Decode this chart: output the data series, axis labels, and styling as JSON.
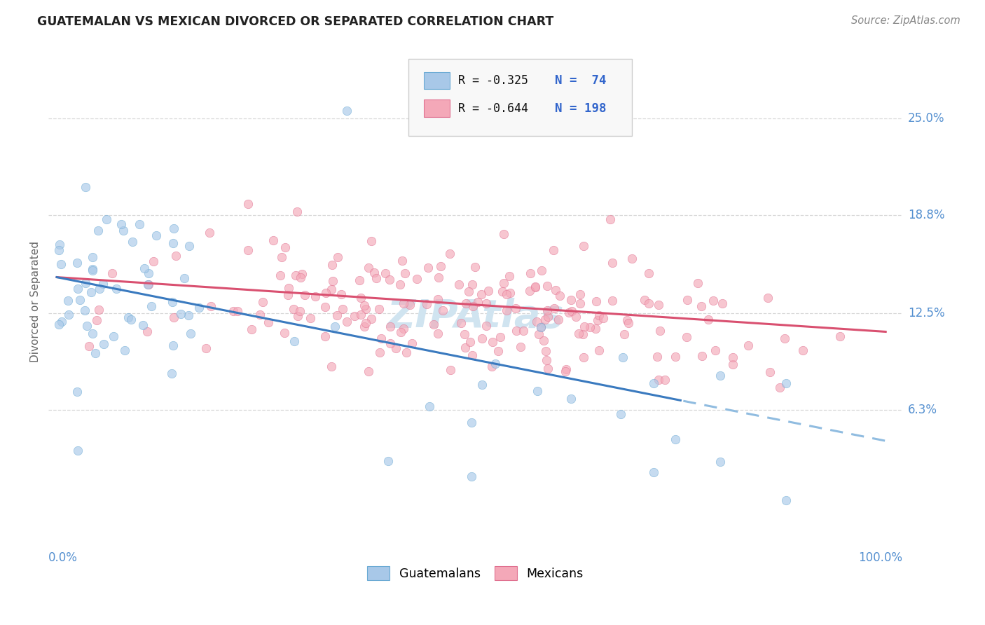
{
  "title": "GUATEMALAN VS MEXICAN DIVORCED OR SEPARATED CORRELATION CHART",
  "source": "Source: ZipAtlas.com",
  "ylabel": "Divorced or Separated",
  "ytick_labels": [
    "6.3%",
    "12.5%",
    "18.8%",
    "25.0%"
  ],
  "ytick_values": [
    0.063,
    0.125,
    0.188,
    0.25
  ],
  "guatemalan_color": "#a8c8e8",
  "guatemalan_edge": "#6aaad4",
  "mexican_color": "#f4a8b8",
  "mexican_edge": "#e07090",
  "trendline_guatemalan_color": "#3a7abf",
  "trendline_guatemalan_dash_color": "#90bce0",
  "trendline_mexican_color": "#d95070",
  "background_color": "#ffffff",
  "grid_color": "#d8d8d8",
  "axis_color": "#5590d0",
  "watermark_color": "#d0e4f0",
  "scatter_size": 80,
  "scatter_alpha": 0.65,
  "legend_box_color": "#f8f8f8",
  "legend_border_color": "#cccccc",
  "r_text_color": "#111111",
  "n_text_color": "#3366cc"
}
